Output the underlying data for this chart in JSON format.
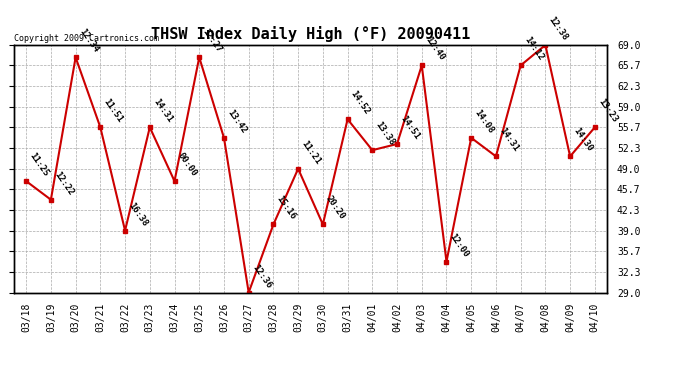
{
  "title": "THSW Index Daily High (°F) 20090411",
  "copyright": "Copyright 2009 Cartronics.com",
  "dates": [
    "03/18",
    "03/19",
    "03/20",
    "03/21",
    "03/22",
    "03/23",
    "03/24",
    "03/25",
    "03/26",
    "03/27",
    "03/28",
    "03/29",
    "03/30",
    "03/31",
    "04/01",
    "04/02",
    "04/03",
    "04/04",
    "04/05",
    "04/06",
    "04/07",
    "04/08",
    "04/09",
    "04/10"
  ],
  "values": [
    47.0,
    44.0,
    67.0,
    55.7,
    39.0,
    55.7,
    47.0,
    67.0,
    54.0,
    29.0,
    40.0,
    49.0,
    40.0,
    57.0,
    52.0,
    53.0,
    65.7,
    34.0,
    54.0,
    51.0,
    65.7,
    69.0,
    51.0,
    55.7
  ],
  "labels": [
    "11:25",
    "12:22",
    "12:34",
    "11:51",
    "16:38",
    "14:31",
    "00:00",
    "12:27",
    "13:42",
    "12:36",
    "15:16",
    "11:21",
    "20:20",
    "14:52",
    "13:38",
    "14:51",
    "12:40",
    "12:00",
    "14:08",
    "14:31",
    "14:12",
    "12:38",
    "14:30",
    "13:23"
  ],
  "yticks": [
    29.0,
    32.3,
    35.7,
    39.0,
    42.3,
    45.7,
    49.0,
    52.3,
    55.7,
    59.0,
    62.3,
    65.7,
    69.0
  ],
  "ylim": [
    29.0,
    69.0
  ],
  "line_color": "#cc0000",
  "marker_color": "#cc0000",
  "bg_color": "#ffffff",
  "grid_color": "#aaaaaa",
  "label_color": "#000000",
  "title_fontsize": 11,
  "tick_fontsize": 7,
  "annotation_fontsize": 6.5
}
